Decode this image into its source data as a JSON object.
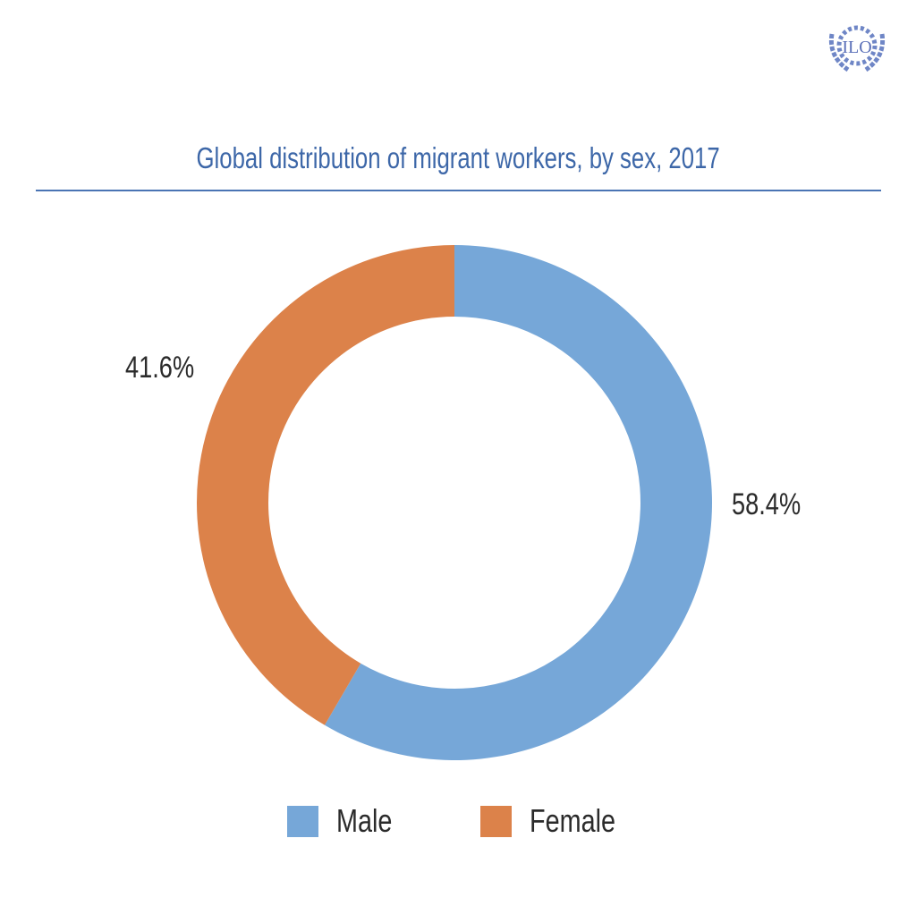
{
  "logo": {
    "text": "ILO",
    "icon": "ilo-emblem-icon"
  },
  "chart_data": {
    "type": "pie",
    "style": "donut",
    "title": "Global distribution of migrant workers, by sex, 2017",
    "categories": [
      "Male",
      "Female"
    ],
    "values": [
      58.4,
      41.6
    ],
    "labels": [
      "58.4%",
      "41.6%"
    ],
    "colors": [
      "#76a7d8",
      "#dc824a"
    ],
    "legend": {
      "position": "bottom",
      "entries": [
        "Male",
        "Female"
      ]
    }
  }
}
